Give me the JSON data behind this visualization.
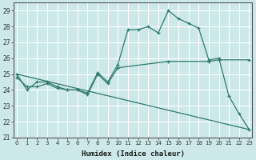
{
  "title": "",
  "xlabel": "Humidex (Indice chaleur)",
  "ylabel": "",
  "bg_color": "#cce8e8",
  "line_color": "#2d7a6a",
  "grid_color": "#b0d4d4",
  "curve1": [
    [
      0,
      25.0
    ],
    [
      1,
      24.0
    ],
    [
      2,
      24.5
    ],
    [
      3,
      24.5
    ],
    [
      4,
      24.2
    ],
    [
      5,
      24.0
    ],
    [
      6,
      24.0
    ],
    [
      7,
      23.8
    ],
    [
      8,
      25.1
    ],
    [
      9,
      24.5
    ],
    [
      10,
      25.6
    ],
    [
      11,
      27.8
    ],
    [
      12,
      27.8
    ],
    [
      13,
      28.0
    ],
    [
      14,
      27.6
    ],
    [
      15,
      29.0
    ],
    [
      16,
      28.5
    ],
    [
      17,
      28.2
    ],
    [
      18,
      27.9
    ],
    [
      19,
      25.9
    ],
    [
      20,
      26.0
    ],
    [
      21,
      23.6
    ],
    [
      22,
      22.5
    ],
    [
      23,
      21.5
    ]
  ],
  "curve2": [
    [
      0,
      25.0
    ],
    [
      23,
      21.5
    ]
  ],
  "curve3": [
    [
      0,
      24.8
    ],
    [
      1,
      24.2
    ],
    [
      2,
      24.2
    ],
    [
      3,
      24.4
    ],
    [
      4,
      24.1
    ],
    [
      5,
      24.0
    ],
    [
      6,
      24.0
    ],
    [
      7,
      23.7
    ],
    [
      8,
      25.0
    ],
    [
      9,
      24.4
    ],
    [
      10,
      25.4
    ],
    [
      15,
      25.8
    ],
    [
      19,
      25.8
    ],
    [
      20,
      25.9
    ],
    [
      23,
      25.9
    ]
  ],
  "xlim": [
    0,
    23
  ],
  "ylim": [
    21,
    29.5
  ],
  "yticks": [
    21,
    22,
    23,
    24,
    25,
    26,
    27,
    28,
    29
  ],
  "xticks": [
    0,
    1,
    2,
    3,
    4,
    5,
    6,
    7,
    8,
    9,
    10,
    11,
    12,
    13,
    14,
    15,
    16,
    17,
    18,
    19,
    20,
    21,
    22,
    23
  ]
}
